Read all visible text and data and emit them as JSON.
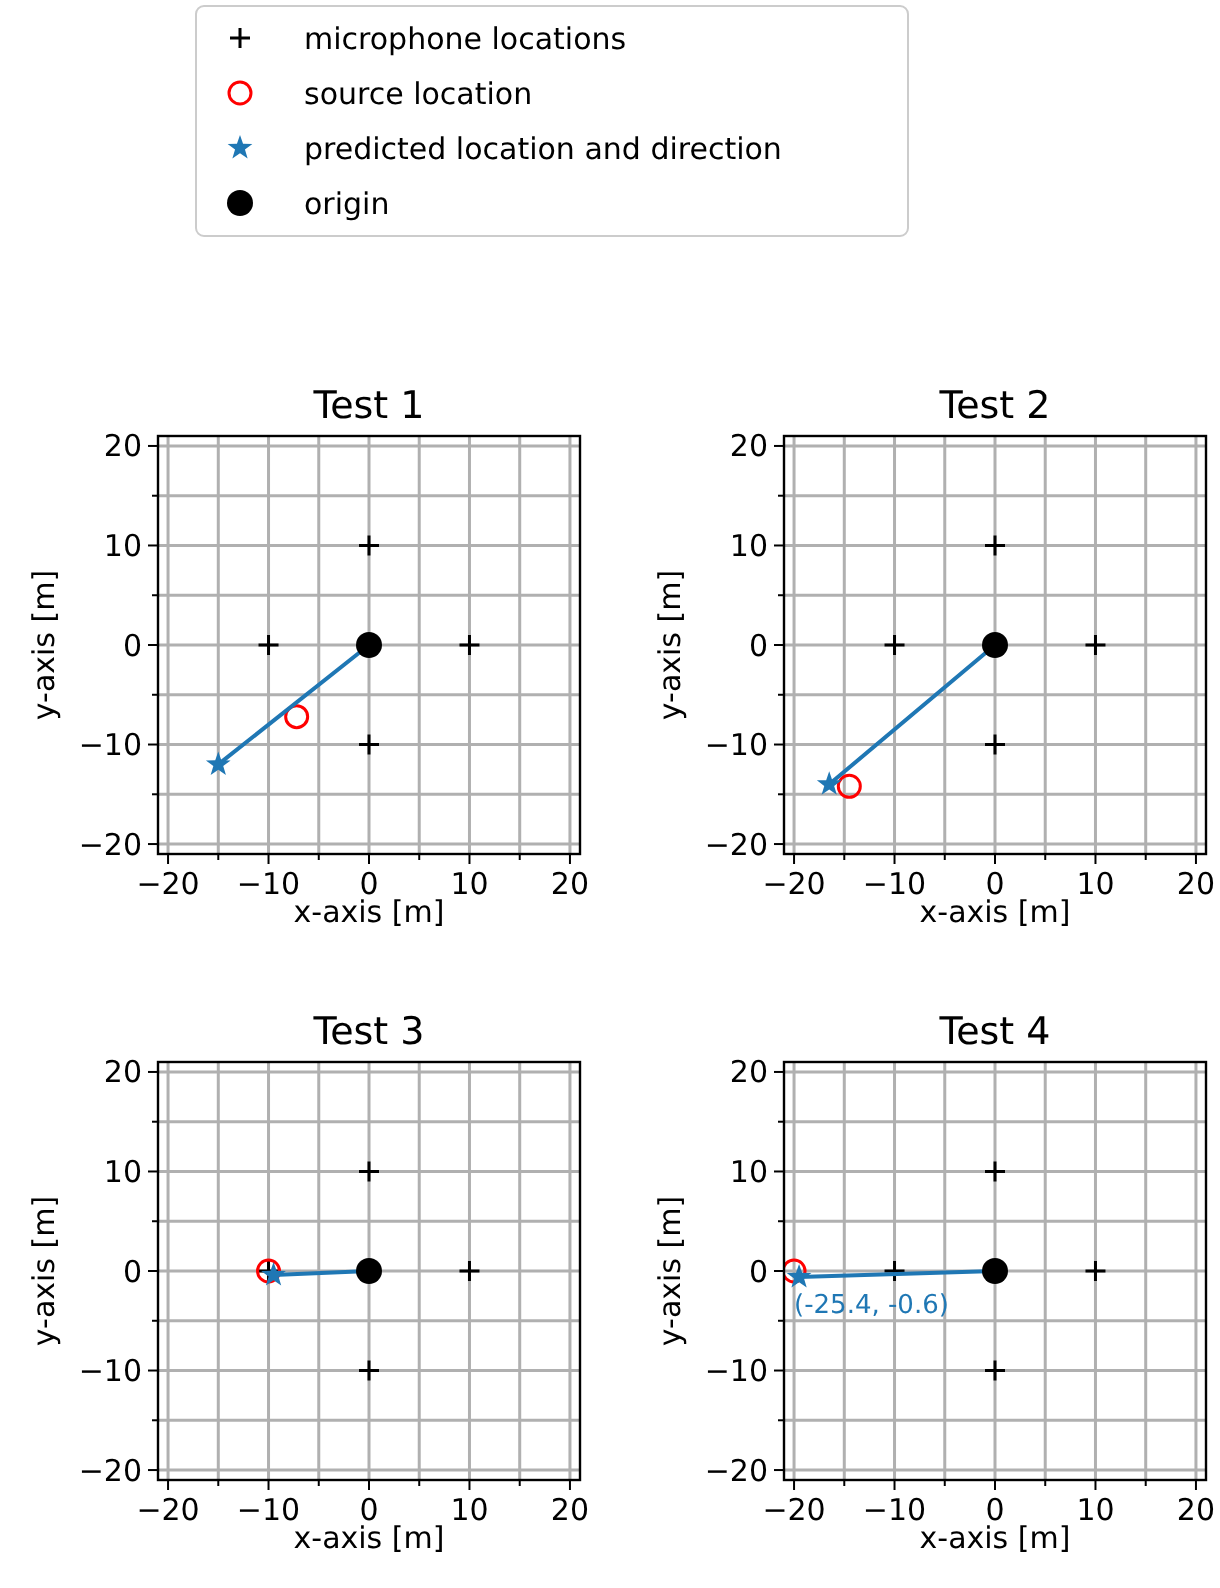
{
  "chart_data": [
    {
      "type": "scatter",
      "title": "Test 1",
      "xlabel": "x-axis [m]",
      "ylabel": "y-axis [m]",
      "xlim": [
        -21,
        21
      ],
      "ylim": [
        -21,
        21
      ],
      "grid": true,
      "legend": "top",
      "xticks": [
        -20,
        {
          "value": -15,
          "label": null
        },
        -10,
        {
          "value": -5,
          "label": null
        },
        0,
        {
          "value": 5,
          "label": null
        },
        10,
        {
          "value": 15,
          "label": null
        },
        20
      ],
      "yticks": [
        -20,
        {
          "value": -15,
          "label": null
        },
        -10,
        {
          "value": -5,
          "label": null
        },
        0,
        {
          "value": 5,
          "label": null
        },
        10,
        {
          "value": 15,
          "label": null
        },
        20
      ],
      "series": [
        {
          "name": "microphone locations",
          "type": "scatter",
          "marker": "cross",
          "color": "#000000",
          "x": [
            0,
            -10,
            10,
            0
          ],
          "values": [
            10,
            0,
            0,
            -10
          ]
        },
        {
          "name": "source location",
          "type": "scatter",
          "marker": "circle",
          "color": "#ff0000",
          "x": [
            -7.2
          ],
          "values": [
            -7.2
          ]
        },
        {
          "name": "predicted location and direction",
          "type": "line",
          "marker": "star",
          "color": "#1f77b4",
          "x": [
            0,
            -15
          ],
          "values": [
            0,
            -12
          ]
        },
        {
          "name": "origin",
          "type": "scatter",
          "marker": "circle",
          "color": "#000000",
          "x": [
            0
          ],
          "values": [
            0
          ]
        }
      ]
    },
    {
      "type": "scatter",
      "title": "Test 2",
      "xlabel": "x-axis [m]",
      "ylabel": "y-axis [m]",
      "xlim": [
        -21,
        21
      ],
      "ylim": [
        -21,
        21
      ],
      "grid": true,
      "xticks": [
        -20,
        {
          "value": -15,
          "label": null
        },
        -10,
        {
          "value": -5,
          "label": null
        },
        0,
        {
          "value": 5,
          "label": null
        },
        10,
        {
          "value": 15,
          "label": null
        },
        20
      ],
      "yticks": [
        -20,
        {
          "value": -15,
          "label": null
        },
        -10,
        {
          "value": -5,
          "label": null
        },
        0,
        {
          "value": 5,
          "label": null
        },
        10,
        {
          "value": 15,
          "label": null
        },
        20
      ],
      "series": [
        {
          "type": "scatter",
          "marker": "cross",
          "color": "#000000",
          "x": [
            0,
            -10,
            10,
            0
          ],
          "values": [
            10,
            0,
            0,
            -10
          ]
        },
        {
          "type": "scatter",
          "marker": "circle",
          "color": "#ff0000",
          "x": [
            -14.5
          ],
          "values": [
            -14.2
          ]
        },
        {
          "type": "line",
          "marker": "star",
          "color": "#1f77b4",
          "x": [
            0,
            -16.5
          ],
          "values": [
            0,
            -14
          ]
        },
        {
          "type": "scatter",
          "marker": "circle",
          "color": "#000000",
          "x": [
            0
          ],
          "values": [
            0
          ]
        }
      ]
    },
    {
      "type": "scatter",
      "title": "Test 3",
      "xlabel": "x-axis [m]",
      "ylabel": "y-axis [m]",
      "xlim": [
        -21,
        21
      ],
      "ylim": [
        -21,
        21
      ],
      "grid": true,
      "xticks": [
        -20,
        {
          "value": -15,
          "label": null
        },
        -10,
        {
          "value": -5,
          "label": null
        },
        0,
        {
          "value": 5,
          "label": null
        },
        10,
        {
          "value": 15,
          "label": null
        },
        20
      ],
      "yticks": [
        -20,
        {
          "value": -15,
          "label": null
        },
        -10,
        {
          "value": -5,
          "label": null
        },
        0,
        {
          "value": 5,
          "label": null
        },
        10,
        {
          "value": 15,
          "label": null
        },
        20
      ],
      "series": [
        {
          "type": "scatter",
          "marker": "cross",
          "color": "#000000",
          "x": [
            0,
            -10,
            10,
            0
          ],
          "values": [
            10,
            0,
            0,
            -10
          ]
        },
        {
          "type": "scatter",
          "marker": "circle",
          "color": "#ff0000",
          "x": [
            -10
          ],
          "values": [
            0
          ]
        },
        {
          "type": "line",
          "marker": "star",
          "color": "#1f77b4",
          "x": [
            0,
            -9.5
          ],
          "values": [
            0,
            -0.4
          ]
        },
        {
          "type": "scatter",
          "marker": "circle",
          "color": "#000000",
          "x": [
            0
          ],
          "values": [
            0
          ]
        }
      ]
    },
    {
      "type": "scatter",
      "title": "Test 4",
      "xlabel": "x-axis [m]",
      "ylabel": "y-axis [m]",
      "xlim": [
        -21,
        21
      ],
      "ylim": [
        -21,
        21
      ],
      "grid": true,
      "xticks": [
        -20,
        {
          "value": -15,
          "label": null
        },
        -10,
        {
          "value": -5,
          "label": null
        },
        0,
        {
          "value": 5,
          "label": null
        },
        10,
        {
          "value": 15,
          "label": null
        },
        20
      ],
      "yticks": [
        -20,
        {
          "value": -15,
          "label": null
        },
        -10,
        {
          "value": -5,
          "label": null
        },
        0,
        {
          "value": 5,
          "label": null
        },
        10,
        {
          "value": 15,
          "label": null
        },
        20
      ],
      "annotations": [
        {
          "text": "(-25.4, -0.6)",
          "x": -20,
          "y": -0.6
        }
      ],
      "series": [
        {
          "type": "scatter",
          "marker": "cross",
          "color": "#000000",
          "x": [
            0,
            -10,
            10,
            0
          ],
          "values": [
            10,
            0,
            0,
            -10
          ]
        },
        {
          "type": "scatter",
          "marker": "circle",
          "color": "#ff0000",
          "x": [
            -20
          ],
          "values": [
            0
          ]
        },
        {
          "type": "line",
          "marker": "star",
          "color": "#1f77b4",
          "x": [
            0,
            -19.5
          ],
          "values": [
            0,
            -0.6
          ]
        },
        {
          "type": "scatter",
          "marker": "circle",
          "color": "#000000",
          "x": [
            0
          ],
          "values": [
            0
          ]
        }
      ]
    }
  ]
}
